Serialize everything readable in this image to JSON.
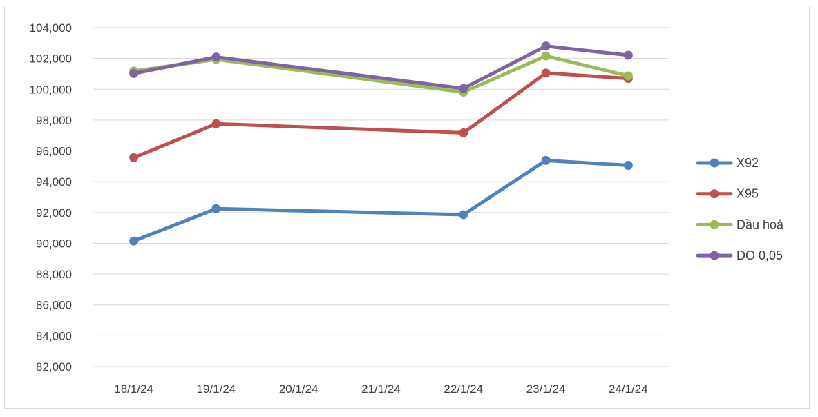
{
  "chart_data": {
    "type": "line",
    "title": "",
    "xlabel": "",
    "ylabel": "",
    "categories": [
      "18/1/24",
      "19/1/24",
      "20/1/24",
      "21/1/24",
      "22/1/24",
      "23/1/24",
      "24/1/24"
    ],
    "ylim": [
      82000,
      104000
    ],
    "y_ticks": [
      82000,
      84000,
      86000,
      88000,
      90000,
      92000,
      94000,
      96000,
      98000,
      100000,
      102000,
      104000
    ],
    "y_tick_labels": [
      "82,000",
      "84,000",
      "86,000",
      "88,000",
      "90,000",
      "92,000",
      "94,000",
      "96,000",
      "98,000",
      "100,000",
      "102,000",
      "104,000"
    ],
    "grid": "horizontal",
    "legend_position": "right",
    "series": [
      {
        "name": "X92",
        "color": "#4f81bd",
        "values": [
          90150,
          92250,
          null,
          null,
          91860,
          95380,
          95060
        ]
      },
      {
        "name": "X95",
        "color": "#c0504d",
        "values": [
          95560,
          97760,
          null,
          null,
          97170,
          101050,
          100700
        ]
      },
      {
        "name": "Dầu hoả",
        "color": "#9bbb59",
        "values": [
          101180,
          101940,
          null,
          null,
          99810,
          102160,
          100870
        ]
      },
      {
        "name": "DO 0,05",
        "color": "#8064a2",
        "values": [
          101020,
          102090,
          null,
          null,
          100050,
          102800,
          102210
        ]
      }
    ]
  }
}
